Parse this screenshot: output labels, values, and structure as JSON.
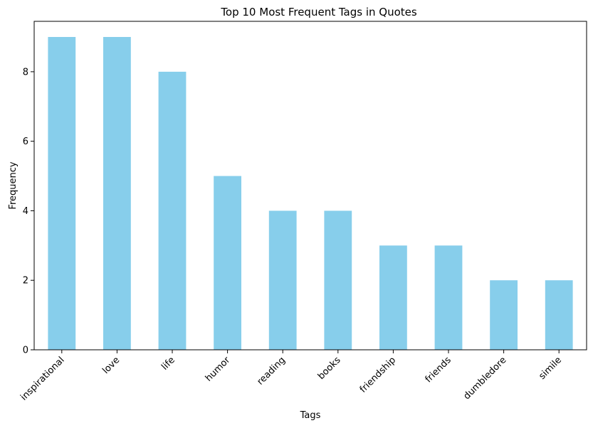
{
  "chart_data": {
    "type": "bar",
    "title": "Top 10 Most Frequent Tags in Quotes",
    "xlabel": "Tags",
    "ylabel": "Frequency",
    "categories": [
      "inspirational",
      "love",
      "life",
      "humor",
      "reading",
      "books",
      "friendship",
      "friends",
      "dumbledore",
      "simile"
    ],
    "values": [
      9,
      9,
      8,
      5,
      4,
      4,
      3,
      3,
      2,
      2
    ],
    "ylim": [
      0,
      9.45
    ],
    "yticks": [
      "0",
      "2",
      "4",
      "6",
      "8"
    ],
    "bar_color": "#87ceeb",
    "grid": false,
    "legend": false
  }
}
